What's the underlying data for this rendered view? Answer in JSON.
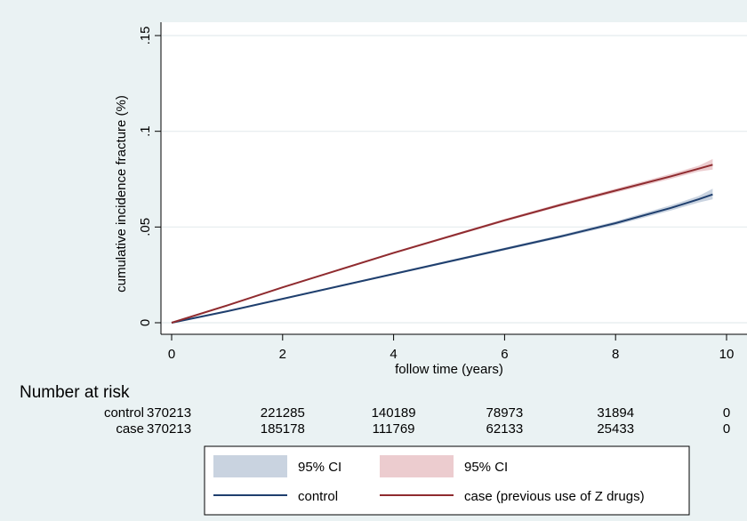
{
  "colors": {
    "background": "#eaf2f3",
    "plot_background": "#ffffff",
    "grid": "#e4ecee",
    "control_line": "#1f3f6e",
    "control_ci": "#c9d3e0",
    "case_line": "#8f2b2f",
    "case_ci": "#eccccf"
  },
  "chart_data": {
    "type": "line",
    "title": "",
    "xlabel": "follow time (years)",
    "ylabel": "cumulative incidence fracture (%)",
    "xlim": [
      0,
      10
    ],
    "ylim": [
      0,
      0.15
    ],
    "x_ticks": [
      {
        "value": 0,
        "label": "0"
      },
      {
        "value": 2,
        "label": "2"
      },
      {
        "value": 4,
        "label": "4"
      },
      {
        "value": 6,
        "label": "6"
      },
      {
        "value": 8,
        "label": "8"
      },
      {
        "value": 10,
        "label": "10"
      }
    ],
    "y_ticks": [
      {
        "value": 0,
        "label": "0"
      },
      {
        "value": 0.05,
        "label": ".05"
      },
      {
        "value": 0.1,
        "label": ".1"
      },
      {
        "value": 0.15,
        "label": ".15"
      }
    ],
    "grid": true,
    "legend_position": "bottom",
    "series": [
      {
        "name": "control",
        "color": "#1f3f6e",
        "ci_color": "#c9d3e0",
        "x": [
          0,
          1,
          2,
          3,
          4,
          5,
          6,
          7,
          8,
          9,
          9.5,
          9.75
        ],
        "y": [
          0,
          0.006,
          0.0125,
          0.019,
          0.0255,
          0.032,
          0.0385,
          0.045,
          0.052,
          0.06,
          0.0645,
          0.067
        ],
        "ci_lower": [
          0,
          0.0058,
          0.0122,
          0.0186,
          0.025,
          0.0314,
          0.0378,
          0.0442,
          0.051,
          0.0586,
          0.0628,
          0.0645
        ],
        "ci_upper": [
          0,
          0.0062,
          0.0128,
          0.0194,
          0.026,
          0.0326,
          0.0392,
          0.0458,
          0.053,
          0.0614,
          0.0662,
          0.07
        ]
      },
      {
        "name": "case (previous use of Z drugs)",
        "color": "#8f2b2f",
        "ci_color": "#eccccf",
        "x": [
          0,
          1,
          2,
          3,
          4,
          5,
          6,
          7,
          8,
          9,
          9.5,
          9.75
        ],
        "y": [
          0,
          0.009,
          0.0185,
          0.0275,
          0.0365,
          0.045,
          0.0535,
          0.0615,
          0.069,
          0.0765,
          0.0805,
          0.0825
        ],
        "ci_lower": [
          0,
          0.0088,
          0.0182,
          0.0271,
          0.036,
          0.0444,
          0.0528,
          0.0607,
          0.068,
          0.0752,
          0.079,
          0.08
        ],
        "ci_upper": [
          0,
          0.0092,
          0.0188,
          0.0279,
          0.037,
          0.0456,
          0.0542,
          0.0623,
          0.07,
          0.0778,
          0.082,
          0.0855
        ]
      }
    ],
    "risk_table": {
      "title": "Number at risk",
      "at_x": [
        0,
        2,
        4,
        6,
        8,
        10
      ],
      "rows": [
        {
          "label": "control",
          "values": [
            "370213",
            "221285",
            "140189",
            "78973",
            "31894",
            "0"
          ]
        },
        {
          "label": "case",
          "values": [
            "370213",
            "185178",
            "111769",
            "62133",
            "25433",
            "0"
          ]
        }
      ]
    },
    "legend": [
      {
        "kind": "area",
        "series": 0,
        "label": "95% CI"
      },
      {
        "kind": "area",
        "series": 1,
        "label": "95% CI"
      },
      {
        "kind": "line",
        "series": 0,
        "label": "control"
      },
      {
        "kind": "line",
        "series": 1,
        "label": "case (previous use of Z drugs)"
      }
    ]
  }
}
